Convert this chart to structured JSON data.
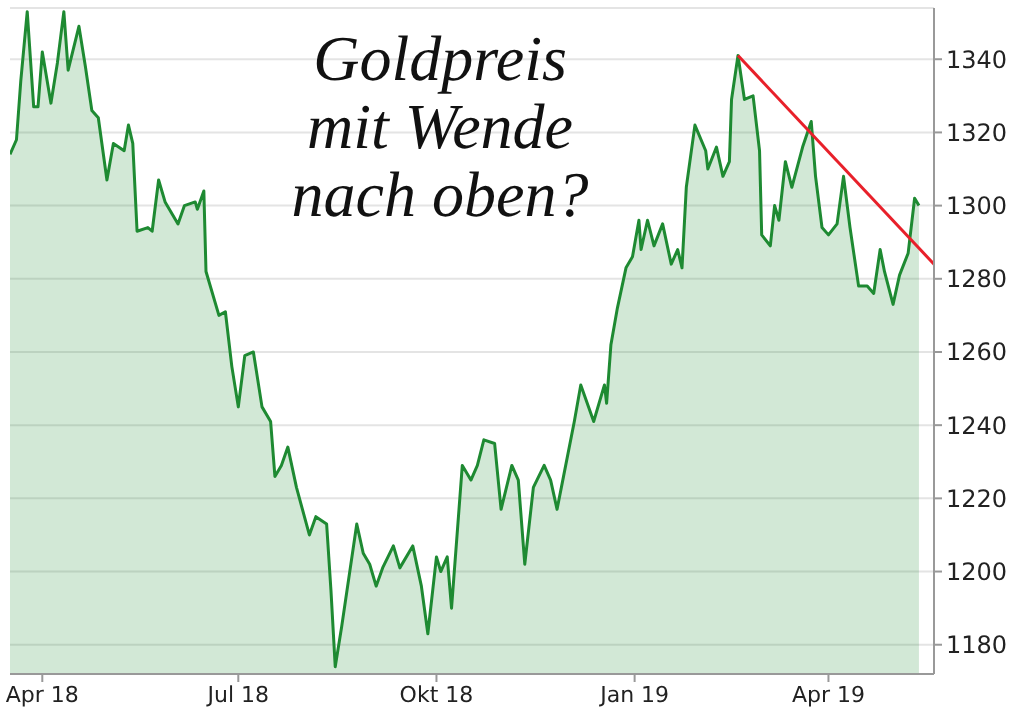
{
  "chart_data": {
    "type": "area",
    "title": "Goldpreis mit Wende nach oben?",
    "xlim": [
      "2018-03-17",
      "2019-05-20"
    ],
    "xticks": [
      {
        "value": "2018-04-01",
        "label": "Apr 18"
      },
      {
        "value": "2018-07-01",
        "label": "Jul 18"
      },
      {
        "value": "2018-10-01",
        "label": "Okt 18"
      },
      {
        "value": "2019-01-01",
        "label": "Jan 19"
      },
      {
        "value": "2019-04-01",
        "label": "Apr 19"
      }
    ],
    "ylim": [
      1172,
      1354
    ],
    "yticks": [
      1180,
      1200,
      1220,
      1240,
      1260,
      1280,
      1300,
      1320,
      1340
    ],
    "grid": "y",
    "series": [
      {
        "color": "#1e8a32",
        "x": [
          "2018-03-17",
          "2018-03-20",
          "2018-03-22",
          "2018-03-25",
          "2018-03-28",
          "2018-03-30",
          "2018-04-01",
          "2018-04-05",
          "2018-04-08",
          "2018-04-11",
          "2018-04-13",
          "2018-04-18",
          "2018-04-21",
          "2018-04-24",
          "2018-04-27",
          "2018-05-01",
          "2018-05-04",
          "2018-05-09",
          "2018-05-11",
          "2018-05-13",
          "2018-05-15",
          "2018-05-20",
          "2018-05-22",
          "2018-05-25",
          "2018-05-28",
          "2018-06-03",
          "2018-06-06",
          "2018-06-11",
          "2018-06-12",
          "2018-06-15",
          "2018-06-16",
          "2018-06-22",
          "2018-06-25",
          "2018-06-28",
          "2018-07-01",
          "2018-07-04",
          "2018-07-08",
          "2018-07-12",
          "2018-07-16",
          "2018-07-18",
          "2018-07-21",
          "2018-07-24",
          "2018-07-28",
          "2018-08-03",
          "2018-08-06",
          "2018-08-11",
          "2018-08-13",
          "2018-08-15",
          "2018-08-18",
          "2018-08-25",
          "2018-08-28",
          "2018-08-31",
          "2018-09-03",
          "2018-09-06",
          "2018-09-11",
          "2018-09-14",
          "2018-09-20",
          "2018-09-24",
          "2018-09-27",
          "2018-10-01",
          "2018-10-03",
          "2018-10-06",
          "2018-10-08",
          "2018-10-13",
          "2018-10-17",
          "2018-10-20",
          "2018-10-23",
          "2018-10-28",
          "2018-10-31",
          "2018-11-05",
          "2018-11-08",
          "2018-11-11",
          "2018-11-15",
          "2018-11-20",
          "2018-11-23",
          "2018-11-26",
          "2018-11-29",
          "2018-12-04",
          "2018-12-07",
          "2018-12-13",
          "2018-12-18",
          "2018-12-19",
          "2018-12-21",
          "2018-12-24",
          "2018-12-28",
          "2018-12-31",
          "2019-01-03",
          "2019-01-04",
          "2019-01-07",
          "2019-01-10",
          "2019-01-14",
          "2019-01-18",
          "2019-01-21",
          "2019-01-23",
          "2019-01-25",
          "2019-01-29",
          "2019-02-03",
          "2019-02-04",
          "2019-02-08",
          "2019-02-11",
          "2019-02-14",
          "2019-02-15",
          "2019-02-18",
          "2019-02-21",
          "2019-02-25",
          "2019-02-28",
          "2019-03-01",
          "2019-03-05",
          "2019-03-07",
          "2019-03-09",
          "2019-03-12",
          "2019-03-15",
          "2019-03-20",
          "2019-03-24",
          "2019-03-26",
          "2019-03-29",
          "2019-04-01",
          "2019-04-05",
          "2019-04-08",
          "2019-04-11",
          "2019-04-15",
          "2019-04-19",
          "2019-04-22",
          "2019-04-25",
          "2019-04-27",
          "2019-05-01",
          "2019-05-04",
          "2019-05-08",
          "2019-05-11",
          "2019-05-13"
        ],
        "values": [
          1314,
          1318,
          1334,
          1353,
          1327,
          1327,
          1342,
          1328,
          1339,
          1353,
          1337,
          1349,
          1338,
          1326,
          1324,
          1307,
          1317,
          1315,
          1322,
          1317,
          1293,
          1294,
          1293,
          1307,
          1301,
          1295,
          1300,
          1301,
          1299,
          1304,
          1282,
          1270,
          1271,
          1256,
          1245,
          1259,
          1260,
          1245,
          1241,
          1226,
          1229,
          1234,
          1223,
          1210,
          1215,
          1213,
          1195,
          1174,
          1185,
          1213,
          1205,
          1202,
          1196,
          1201,
          1207,
          1201,
          1207,
          1196,
          1183,
          1204,
          1200,
          1204,
          1190,
          1229,
          1225,
          1229,
          1236,
          1235,
          1217,
          1229,
          1225,
          1202,
          1223,
          1229,
          1225,
          1217,
          1226,
          1241,
          1251,
          1241,
          1251,
          1246,
          1262,
          1272,
          1283,
          1286,
          1296,
          1288,
          1296,
          1289,
          1295,
          1284,
          1288,
          1283,
          1305,
          1322,
          1315,
          1310,
          1316,
          1308,
          1312,
          1329,
          1341,
          1329,
          1330,
          1315,
          1292,
          1289,
          1300,
          1296,
          1312,
          1305,
          1316,
          1323,
          1308,
          1294,
          1292,
          1295,
          1308,
          1294,
          1278,
          1278,
          1276,
          1288,
          1282,
          1273,
          1281,
          1287,
          1302,
          1300
        ]
      },
      {
        "type": "line",
        "color": "#e8202a",
        "x": [
          "2019-02-18",
          "2019-05-20"
        ],
        "values": [
          1341,
          1284
        ]
      }
    ]
  }
}
